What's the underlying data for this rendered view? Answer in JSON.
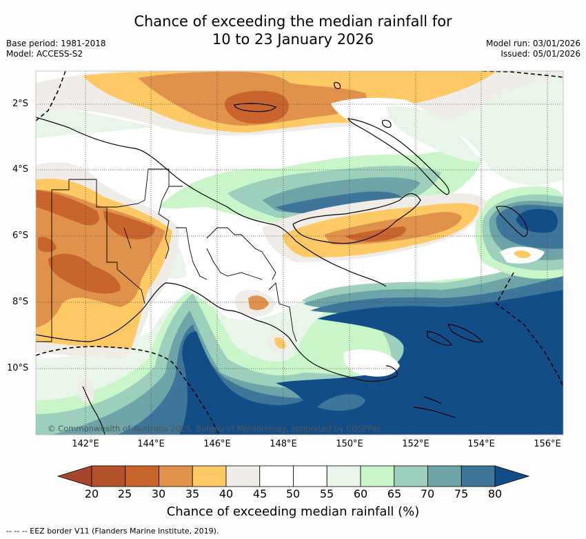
{
  "title": {
    "line1": "Chance of exceeding the median rainfall for",
    "line2": "10 to 23 January 2026"
  },
  "meta_left": {
    "base_period": "Base period: 1981-2018",
    "model": "Model: ACCESS-S2"
  },
  "meta_right": {
    "model_run": "Model run: 03/01/2026",
    "issued": "Issued: 05/01/2026"
  },
  "latitude_labels": [
    "2°S",
    "4°S",
    "6°S",
    "8°S",
    "10°S"
  ],
  "longitude_labels": [
    "142°E",
    "144°E",
    "146°E",
    "148°E",
    "150°E",
    "152°E",
    "154°E",
    "156°E"
  ],
  "credit": "© Commonwealth of Australia 2026, Bureau of Meteorology, supported by COSPPac",
  "colorbar": {
    "ticks": [
      "20",
      "25",
      "30",
      "35",
      "40",
      "45",
      "50",
      "55",
      "60",
      "65",
      "70",
      "75",
      "80"
    ],
    "colors": [
      "#a6452a",
      "#b4532b",
      "#c9642d",
      "#e0924a",
      "#fdc965",
      "#f0ede8",
      "#ffffff",
      "#ffffff",
      "#eaf5ea",
      "#c8f6c8",
      "#9dd0bc",
      "#6ea3a8",
      "#3e7598",
      "#124d88"
    ],
    "title": "Chance of exceeding median rainfall (%)"
  },
  "legend_note": "--  --  -- EEZ border V11 (Flanders Marine Institute, 2019).",
  "colors": {
    "dark_orange": "#c9642d",
    "orange": "#e0924a",
    "yellow": "#fdc965",
    "light_grey": "#f0ede8",
    "light_green": "#eaf5ea",
    "green": "#c8f6c8",
    "teal_light": "#9dd0bc",
    "teal": "#6ea3a8",
    "blue": "#3e7598",
    "dark_blue": "#124d88"
  }
}
